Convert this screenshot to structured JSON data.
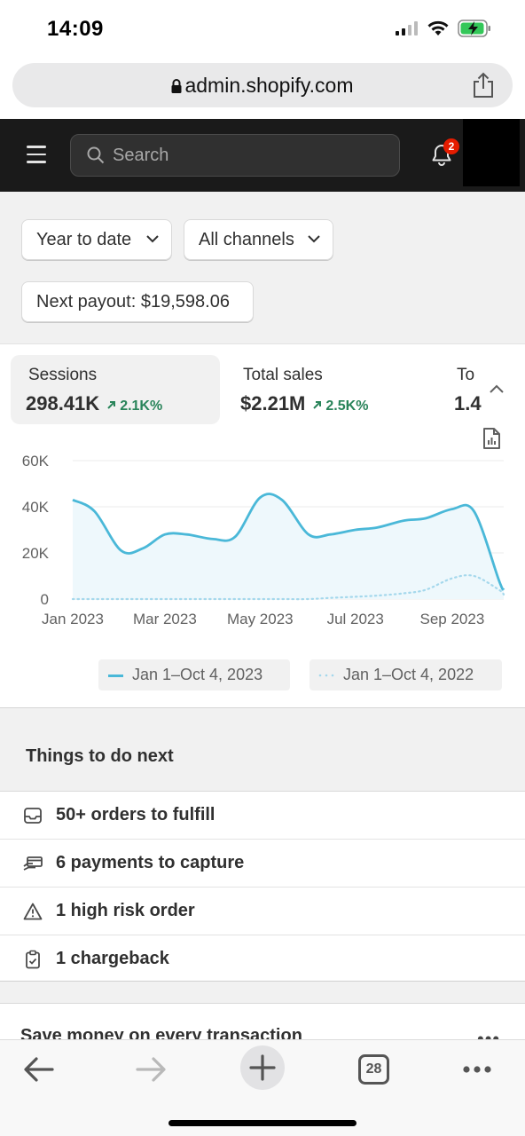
{
  "status_bar": {
    "time": "14:09"
  },
  "browser": {
    "url": "admin.shopify.com",
    "tabs_count": "28"
  },
  "header": {
    "search_placeholder": "Search",
    "notification_count": "2"
  },
  "filters": {
    "date_range": "Year to date",
    "channels": "All channels",
    "payout": "Next payout: $19,598.06"
  },
  "metrics": [
    {
      "label": "Sessions",
      "value": "298.41K",
      "delta": "2.1K%"
    },
    {
      "label": "Total sales",
      "value": "$2.21M",
      "delta": "2.5K%"
    },
    {
      "label": "To",
      "value": "1.4"
    }
  ],
  "chart_data": {
    "type": "line",
    "x": [
      "2023-01-01",
      "2023-01-15",
      "2023-02-01",
      "2023-02-15",
      "2023-03-01",
      "2023-03-15",
      "2023-04-01",
      "2023-04-15",
      "2023-05-01",
      "2023-05-15",
      "2023-06-01",
      "2023-06-15",
      "2023-07-01",
      "2023-07-15",
      "2023-08-01",
      "2023-08-15",
      "2023-09-01",
      "2023-09-15",
      "2023-10-01",
      "2023-10-04"
    ],
    "series": [
      {
        "name": "Jan 1–Oct 4, 2023",
        "style": "solid",
        "color": "#4ab8d8",
        "values": [
          43000,
          38000,
          21000,
          22000,
          28000,
          28000,
          26000,
          27000,
          44000,
          43000,
          28000,
          28000,
          30000,
          31000,
          34000,
          35000,
          39000,
          38000,
          8000,
          4000
        ]
      },
      {
        "name": "Jan 1–Oct 4, 2022",
        "style": "dotted",
        "color": "#a5d8ec",
        "values": [
          0,
          0,
          0,
          0,
          0,
          0,
          0,
          0,
          0,
          0,
          0,
          500,
          1000,
          1500,
          2500,
          4000,
          9000,
          10000,
          4000,
          2000
        ]
      }
    ],
    "x_tick_labels": [
      "Jan 2023",
      "Mar 2023",
      "May 2023",
      "Jul 2023",
      "Sep 2023"
    ],
    "y_tick_labels": [
      "0",
      "20K",
      "40K",
      "60K"
    ],
    "ylim": [
      0,
      60000
    ],
    "grid": true,
    "legend_position": "bottom"
  },
  "todo": {
    "title": "Things to do next",
    "items": [
      {
        "label": "50+ orders to fulfill"
      },
      {
        "label": "6 payments to capture"
      },
      {
        "label": "1 high risk order"
      },
      {
        "label": "1 chargeback"
      }
    ]
  },
  "promo": {
    "title": "Save money on every transaction"
  }
}
